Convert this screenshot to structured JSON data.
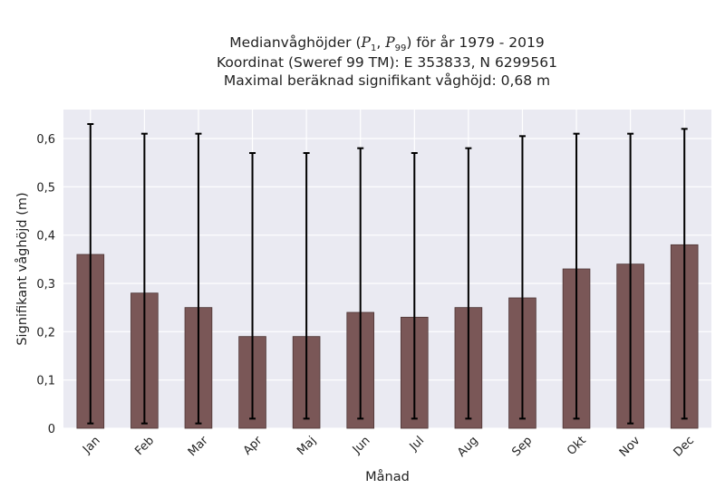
{
  "chart_data": {
    "type": "bar",
    "title_lines": [
      "Medianvåghöjder (P1, P99) för år 1979 - 2019",
      "Koordinat (Sweref 99 TM): E 353833, N 6299561",
      "Maximal beräknad signifikant våghöjd: 0,68 m"
    ],
    "xlabel": "Månad",
    "ylabel": "Signifikant våghöjd (m)",
    "categories": [
      "Jan",
      "Feb",
      "Mar",
      "Apr",
      "Maj",
      "Jun",
      "Jul",
      "Aug",
      "Sep",
      "Okt",
      "Nov",
      "Dec"
    ],
    "values": [
      0.36,
      0.28,
      0.25,
      0.19,
      0.19,
      0.24,
      0.23,
      0.25,
      0.27,
      0.33,
      0.34,
      0.38
    ],
    "p1": [
      0.01,
      0.01,
      0.01,
      0.02,
      0.02,
      0.02,
      0.02,
      0.02,
      0.02,
      0.02,
      0.01,
      0.02
    ],
    "p99": [
      0.63,
      0.61,
      0.61,
      0.57,
      0.57,
      0.58,
      0.57,
      0.58,
      0.605,
      0.61,
      0.61,
      0.62
    ],
    "yticks": [
      "0",
      "0,1",
      "0,2",
      "0,3",
      "0,4",
      "0,5",
      "0,6"
    ],
    "ytick_values": [
      0,
      0.1,
      0.2,
      0.3,
      0.4,
      0.5,
      0.6
    ],
    "ylim": [
      0,
      0.66
    ],
    "grid": true,
    "bar_color": "#7a5757",
    "background_color": "#eaeaf2"
  }
}
